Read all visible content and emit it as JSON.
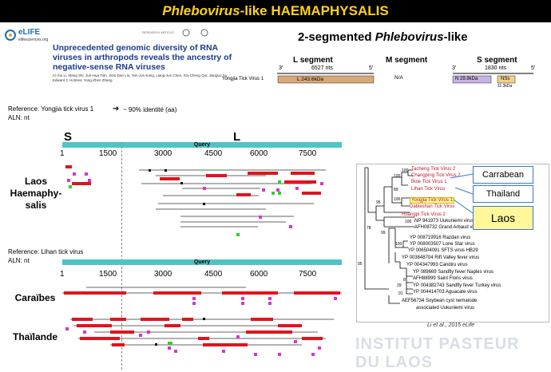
{
  "title": {
    "italic": "Phlebovirus",
    "rest": "-like HAEMAPHYSALIS"
  },
  "elife": {
    "logo_text": "eLIFE",
    "sub_text": "elifesciences.org",
    "tag": "RESEARCH ARTICLE"
  },
  "paper": {
    "title": "Unprecedented genomic diversity of RNA viruses in arthropods reveals the ancestry of negative-sense RNA viruses",
    "authors": "Ci-Xiu Li, Mang Shi, Jun-Hua Tian, Xian-Dan Lin, Yan-Jun Kang, Liang-Jun Chen, Xin-Cheng Qin, Jianguo Xu, Edward C Holmes, Yong-Zhen Zhang"
  },
  "segments": {
    "heading_italic": "Phlebovirus",
    "heading_prefix": "2-segmented ",
    "heading_suffix": "-like",
    "L_label": "L segment",
    "M_label": "M segment",
    "S_label": "S segment",
    "L_nts": "6527  nts",
    "S_nts": "1830  nts",
    "three": "3'",
    "five": "5'",
    "virus_name": "Yongjia Tick Virus 1",
    "L_protein": "L  243.6kDa",
    "M_na": "N/A",
    "N_protein": "N  29.8kDa",
    "NSs_protein": "NSs",
    "NSs_kda": "11.3kDa",
    "colors": {
      "L": "#d9a877",
      "N": "#c9b2e6",
      "NSs": "#f3d08a"
    }
  },
  "reference1": {
    "line1": "Reference: Yongjia tick virus 1",
    "line2": "ALN: nt",
    "arrow_note": "~ 90% identité (aa)"
  },
  "reference2": {
    "line1": "Reference: Lihan tick virus",
    "line2": "ALN: nt"
  },
  "big_S": "S",
  "big_L": "L",
  "query_label": "Query",
  "ticks": [
    "1",
    "1500",
    "3000",
    "4500",
    "6000",
    "7500"
  ],
  "row_labels": {
    "laos": "Laos\nHaemaphy-\nsalis",
    "laos1": "Laos",
    "laos2": "Haemaphy-",
    "laos3": "salis",
    "caraibes": "Caraïbes",
    "thailande": "Thaïlande"
  },
  "tree": {
    "taxa": [
      "Tacheng Tick Virus 2",
      "Changping Tick Virus 2",
      "Bole Tick Virus 1",
      "Lihan Tick Virus",
      "Yongjia Tick Virus 1",
      "Dabieshan Tick Virus",
      "Huangpi Tick Virus 2",
      "NP 941973 Uukuniemi virus",
      "AFH08732 Grand Arbaud virus",
      "YP 008719916 Razdan virus",
      "YP 008003507 Lone Star virus",
      "YP 006504091 SFTS virus HB29",
      "YP 003848704 Rift Valley fever virus",
      "YP 004347993 Candiru virus",
      "YP 089669 Sandfly fever Naples virus",
      "AFH88999 Saint Floris virus",
      "YP 004382743 Sandfly fever Turkey virus",
      "YP 004414703 Aguacate virus",
      "AEF56734 Soybean cyst nematode",
      "associated Uukuniemi virus"
    ],
    "bootstraps": [
      "100",
      "100",
      "89",
      "100",
      "95",
      "100",
      "78",
      "99",
      "100",
      "95",
      "8",
      "29",
      "91"
    ],
    "callouts": [
      "Carrabean",
      "Thailand",
      "Laos"
    ],
    "citation": "Li et al., 2015 eLife"
  },
  "watermark": "INSTITUT PASTEUR DU LAOS"
}
